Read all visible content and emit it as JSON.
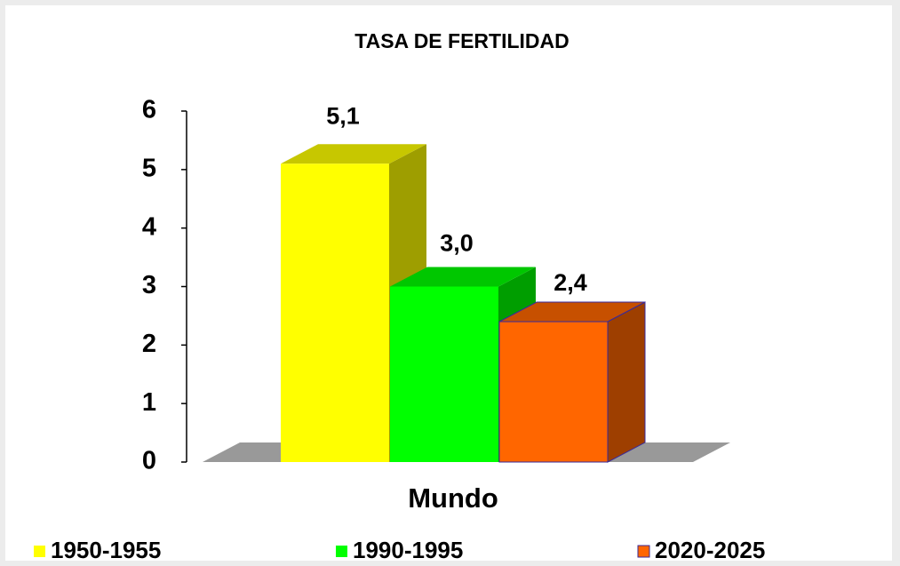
{
  "chart_data": {
    "type": "bar3d",
    "title": "TASA DE FERTILIDAD",
    "categories": [
      "Mundo"
    ],
    "series": [
      {
        "name": "1950-1955",
        "color": "#ffff00",
        "values": [
          5.1
        ],
        "value_labels": [
          "5,1"
        ]
      },
      {
        "name": "1990-1995",
        "color": "#00ff00",
        "values": [
          3.0
        ],
        "value_labels": [
          "3,0"
        ]
      },
      {
        "name": "2020-2025",
        "color": "#ff6600",
        "values": [
          2.4
        ],
        "value_labels": [
          "2,4"
        ]
      }
    ],
    "ylim": [
      0,
      6
    ],
    "yticks": [
      0,
      1,
      2,
      3,
      4,
      5,
      6
    ],
    "legend": "bottom"
  }
}
